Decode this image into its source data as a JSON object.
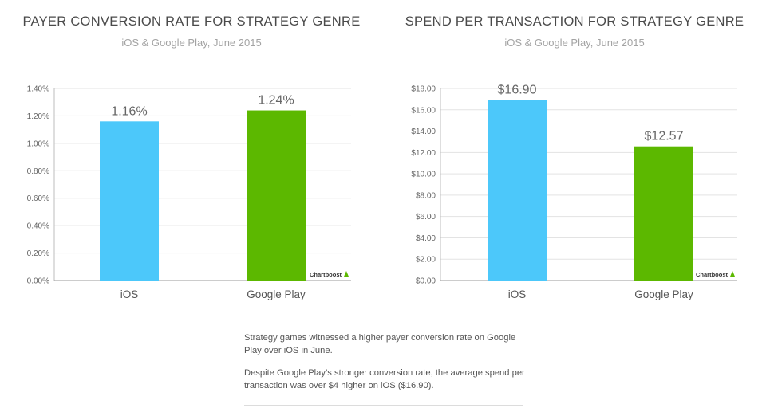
{
  "chart_data": [
    {
      "type": "bar",
      "title": "PAYER CONVERSION RATE FOR STRATEGY GENRE",
      "subtitle": "iOS & Google Play, June 2015",
      "categories": [
        "iOS",
        "Google Play"
      ],
      "values": [
        1.16,
        1.24
      ],
      "data_labels": [
        "1.16%",
        "1.24%"
      ],
      "colors": [
        "#4cc8fa",
        "#5cb800"
      ],
      "ylim": [
        0,
        1.4
      ],
      "yticks": [
        0,
        0.2,
        0.4,
        0.6,
        0.8,
        1.0,
        1.2,
        1.4
      ],
      "ytick_labels": [
        "0.00%",
        "0.20%",
        "0.40%",
        "0.60%",
        "0.80%",
        "1.00%",
        "1.20%",
        "1.40%"
      ],
      "grid": true,
      "watermark": "Chartboost"
    },
    {
      "type": "bar",
      "title": "SPEND PER TRANSACTION FOR STRATEGY GENRE",
      "subtitle": "iOS & Google Play, June 2015",
      "categories": [
        "iOS",
        "Google Play"
      ],
      "values": [
        16.9,
        12.57
      ],
      "data_labels": [
        "$16.90",
        "$12.57"
      ],
      "colors": [
        "#4cc8fa",
        "#5cb800"
      ],
      "ylim": [
        0,
        18
      ],
      "yticks": [
        0,
        2,
        4,
        6,
        8,
        10,
        12,
        14,
        16,
        18
      ],
      "ytick_labels": [
        "$0.00",
        "$2.00",
        "$4.00",
        "$6.00",
        "$8.00",
        "$10.00",
        "$12.00",
        "$14.00",
        "$16.00",
        "$18.00"
      ],
      "grid": true,
      "watermark": "Chartboost"
    }
  ],
  "notes": [
    "Strategy games witnessed a higher payer conversion rate on Google Play over iOS in June.",
    "Despite Google Play’s stronger conversion rate, the average spend per transaction was over $4 higher on iOS ($16.90)."
  ]
}
